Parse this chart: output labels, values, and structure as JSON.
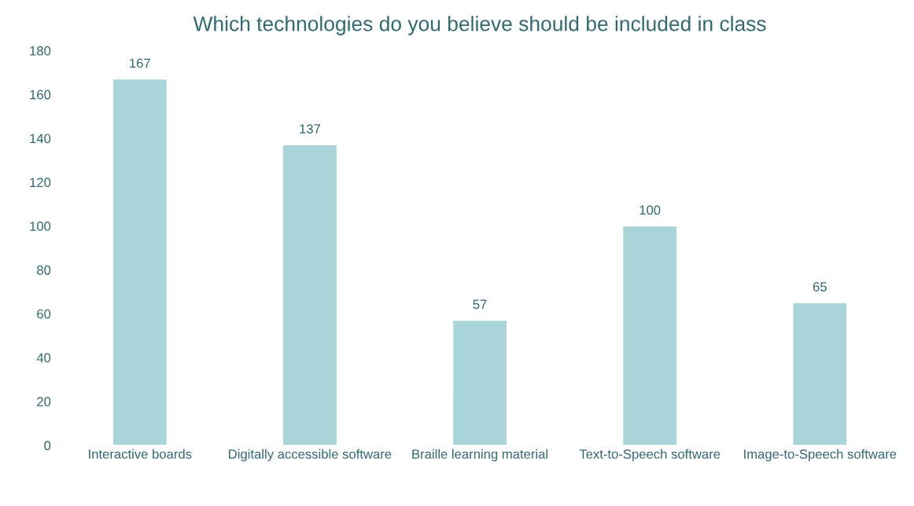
{
  "chart_data": {
    "type": "bar",
    "title": "Which technologies do you believe should be included in class",
    "categories": [
      "Interactive boards",
      "Digitally accessible software",
      "Braille learning material",
      "Text-to-Speech software",
      "Image-to-Speech software"
    ],
    "values": [
      167,
      137,
      57,
      100,
      65
    ],
    "color": "#a9d5da",
    "ylim": [
      0,
      180
    ],
    "yticks": [
      0,
      20,
      40,
      60,
      80,
      100,
      120,
      140,
      160,
      180
    ],
    "grid": false,
    "data_labels": true
  }
}
